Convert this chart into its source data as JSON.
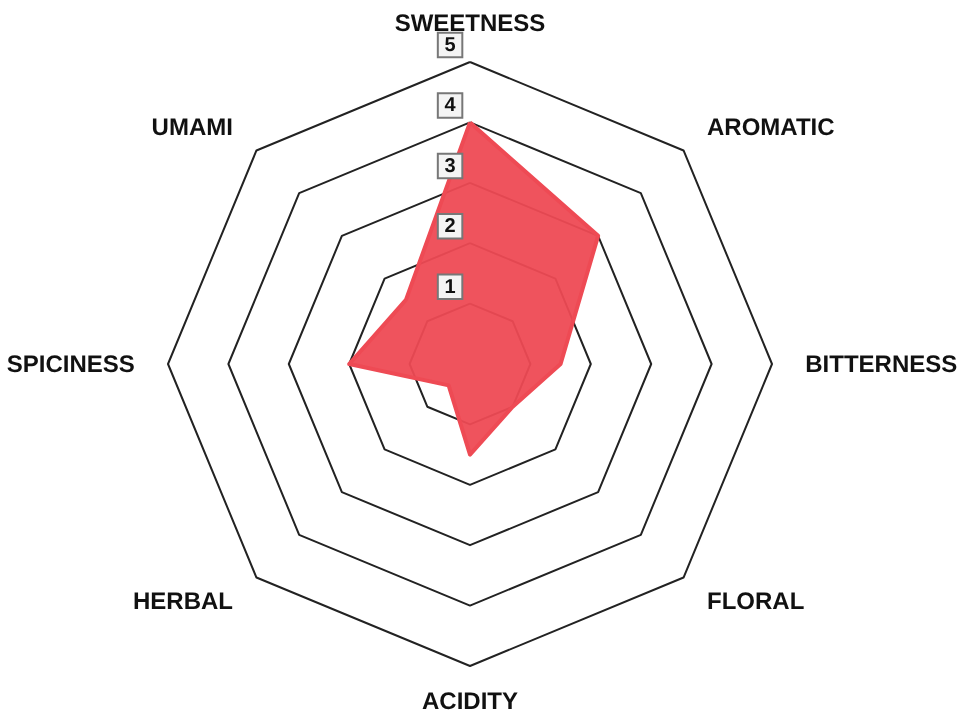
{
  "chart_data": {
    "type": "radar",
    "categories": [
      "SWEETNESS",
      "AROMATIC",
      "BITTERNESS",
      "FLORAL",
      "ACIDITY",
      "HERBAL",
      "SPICINESS",
      "UMAMI"
    ],
    "series": [
      {
        "color": "#ee4a54",
        "values": [
          4,
          3,
          1.5,
          1,
          1.5,
          0.5,
          2,
          1.5
        ]
      }
    ],
    "ylim": [
      0,
      5
    ],
    "yticks": [
      1,
      2,
      3,
      4,
      5
    ],
    "grid": true
  }
}
